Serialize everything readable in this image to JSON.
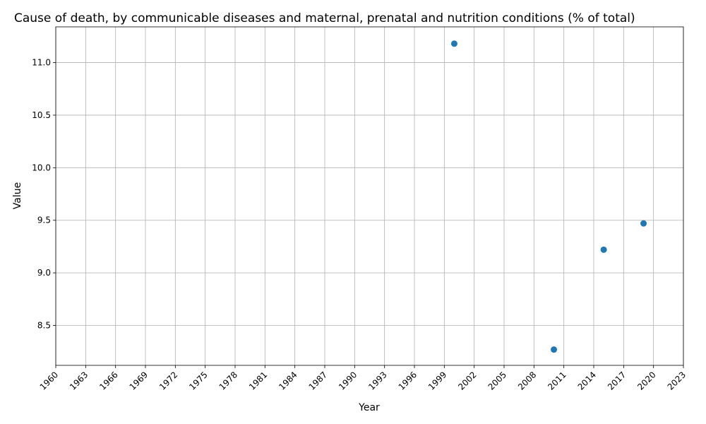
{
  "chart_data": {
    "type": "scatter",
    "title": "Cause of death, by communicable diseases and maternal, prenatal and nutrition conditions (% of total)",
    "xlabel": "Year",
    "ylabel": "Value",
    "x_ticks": [
      "1960",
      "1963",
      "1966",
      "1969",
      "1972",
      "1975",
      "1978",
      "1981",
      "1984",
      "1987",
      "1990",
      "1993",
      "1996",
      "1999",
      "2002",
      "2005",
      "2008",
      "2011",
      "2014",
      "2017",
      "2020",
      "2023"
    ],
    "y_ticks": [
      "8.5",
      "9.0",
      "9.5",
      "10.0",
      "10.5",
      "11.0"
    ],
    "xlim": [
      1960,
      2023
    ],
    "ylim": [
      8.12,
      11.34
    ],
    "grid": true,
    "marker_color": "#1f77b4",
    "series": [
      {
        "points": [
          {
            "x": 2000,
            "y": 11.18
          },
          {
            "x": 2010,
            "y": 8.27
          },
          {
            "x": 2015,
            "y": 9.22
          },
          {
            "x": 2019,
            "y": 9.47
          }
        ]
      }
    ]
  }
}
